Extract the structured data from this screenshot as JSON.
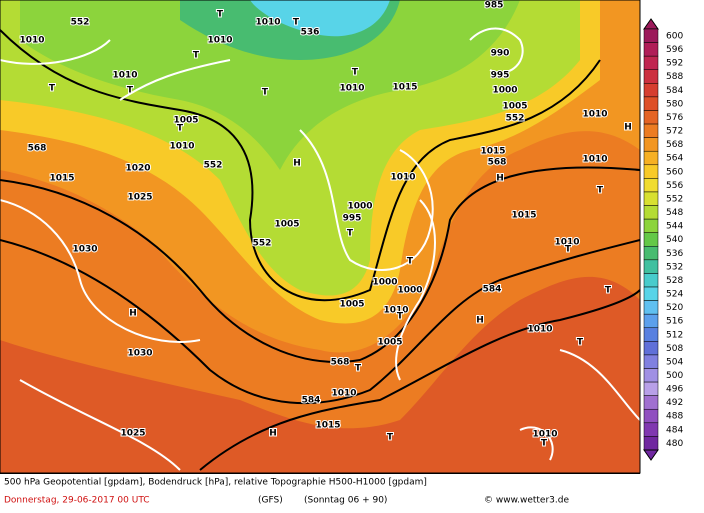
{
  "legend": {
    "levels": [
      600,
      596,
      592,
      588,
      584,
      580,
      576,
      572,
      568,
      564,
      560,
      556,
      552,
      548,
      544,
      540,
      536,
      532,
      528,
      524,
      520,
      516,
      512,
      508,
      504,
      500,
      496,
      492,
      488,
      484,
      480
    ],
    "colors": [
      "#9c1a5a",
      "#b01e58",
      "#c02650",
      "#cc3040",
      "#d63e30",
      "#de5028",
      "#e46424",
      "#ec7c22",
      "#f29622",
      "#f6b024",
      "#f8ca28",
      "#f0dc30",
      "#d8e030",
      "#b4dc34",
      "#8cd43c",
      "#64c848",
      "#48bc70",
      "#40c0a0",
      "#48cccc",
      "#58d4e8",
      "#60c0f0",
      "#5ca0ec",
      "#5880e0",
      "#6070d8",
      "#8080e0",
      "#a090e4",
      "#b8a0e8",
      "#a070d0",
      "#9050c0",
      "#8038b0",
      "#7028a0"
    ]
  },
  "map_labels": [
    "552",
    "536",
    "T",
    "T",
    "1010",
    "1010",
    "1010",
    "T",
    "1010",
    "T",
    "T",
    "T",
    "T",
    "1010",
    "1015",
    "985",
    "990",
    "995",
    "1000",
    "1005",
    "552",
    "1005",
    "T",
    "1010",
    "568",
    "552",
    "H",
    "1020",
    "1015",
    "1025",
    "568",
    "1015",
    "H",
    "1010",
    "1010",
    "H",
    "1010",
    "T",
    "1015",
    "1000",
    "995",
    "T",
    "1005",
    "552",
    "1030",
    "T",
    "1010",
    "T",
    "1000",
    "1000",
    "584",
    "T",
    "H",
    "1005",
    "1010",
    "T",
    "H",
    "1010",
    "T",
    "1030",
    "1005",
    "568",
    "T",
    "1010",
    "584",
    "1015",
    "H",
    "1025",
    "T",
    "1010",
    "T"
  ],
  "footer": {
    "line1": "500 hPa Geopotential [gpdam], Bodendruck [hPa], relative Topographie H500-H1000 [gpdam]",
    "date": "Donnerstag, 29-06-2017  00 UTC",
    "model": "(GFS)",
    "forecast": "(Sonntag 06 + 90)",
    "copyright": "© www.wetter3.de"
  }
}
